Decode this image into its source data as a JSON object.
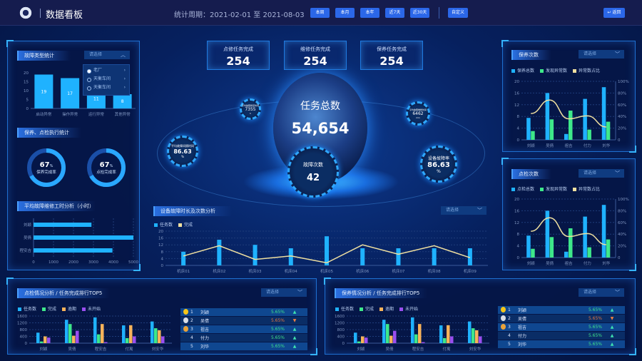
{
  "header": {
    "title": "数据看板",
    "period": "统计周期：2021-02-01 至 2021-08-03",
    "buttons": [
      "本周",
      "本月",
      "本年",
      "近7天",
      "近30天"
    ],
    "custom": "自定义",
    "back": "返回"
  },
  "colors": {
    "blue": "#1fb2ff",
    "green": "#3ee88a",
    "orange": "#f8b35a",
    "purple": "#9a4ef0",
    "line": "#f0e0a0",
    "accent": "#2b67e8"
  },
  "left": {
    "fault_type": {
      "title": "故障类型统计",
      "select": "请选择",
      "options": [
        "老厂",
        "天衡车间",
        "天衡车间"
      ]
    },
    "exec": {
      "title": "保养、点检执行统计",
      "gauges": [
        {
          "value": "67",
          "unit": "%",
          "label": "保养完成率",
          "pct": 67
        },
        {
          "value": "67",
          "unit": "%",
          "label": "点检完成率",
          "pct": 67
        }
      ]
    },
    "hours": {
      "title": "平均故障维修工时分析（小时）"
    }
  },
  "center": {
    "cards": [
      {
        "label": "点修任务完成",
        "value": "254"
      },
      {
        "label": "维修任务完成",
        "value": "254"
      },
      {
        "label": "保养任务完成",
        "value": "254"
      }
    ],
    "total": {
      "label": "任务总数",
      "value": "54,654"
    },
    "fault": {
      "label": "故障次数",
      "value": "42"
    },
    "rings": [
      {
        "label": "平均故障修复时间",
        "value": "7355",
        "unit": "h"
      },
      {
        "label": "平均故障间隔时间",
        "value": "86.63",
        "unit": "%"
      },
      {
        "label": "平均故障维修时间",
        "value": "6462",
        "unit": "min"
      },
      {
        "label": "设备故障率",
        "value": "86.63",
        "unit": "%"
      }
    ],
    "analysis": {
      "title": "设备故障时长及次数分析",
      "select": "请选择"
    }
  },
  "right": {
    "maint": {
      "title": "保养次数",
      "select": "请选择"
    },
    "insp": {
      "title": "点检次数",
      "select": "请选择"
    }
  },
  "bottom": [
    {
      "title": "点检情况分析 / 任务完成排行TOP5",
      "select": "请选择",
      "ranking": [
        {
          "rank": "1",
          "name": "刘颖",
          "pct": "5.65%",
          "trend": "up"
        },
        {
          "rank": "2",
          "name": "吴倩",
          "pct": "5.65%",
          "trend": "down"
        },
        {
          "rank": "3",
          "name": "祖吉",
          "pct": "5.65%",
          "trend": "up"
        },
        {
          "rank": "4",
          "name": "付力",
          "pct": "5.65%",
          "trend": "up"
        },
        {
          "rank": "5",
          "name": "刘华",
          "pct": "5.65%",
          "trend": "up"
        }
      ]
    },
    {
      "title": "保养情况分析 / 任务完成排行TOP5",
      "select": "请选择",
      "ranking": [
        {
          "rank": "1",
          "name": "刘颖",
          "pct": "5.65%",
          "trend": "up"
        },
        {
          "rank": "2",
          "name": "吴倩",
          "pct": "5.65%",
          "trend": "down"
        },
        {
          "rank": "3",
          "name": "祖吉",
          "pct": "5.65%",
          "trend": "up"
        },
        {
          "rank": "4",
          "name": "付力",
          "pct": "5.65%",
          "trend": "up"
        },
        {
          "rank": "5",
          "name": "刘华",
          "pct": "5.65%",
          "trend": "up"
        }
      ]
    }
  ],
  "chart_data": [
    {
      "id": "fault_type",
      "type": "bar",
      "categories": [
        "启动异常",
        "操作异常",
        "运行异常",
        "其他异常"
      ],
      "values": [
        19,
        17,
        11,
        8
      ],
      "ylim": [
        0,
        20
      ],
      "yticks": [
        0,
        5,
        10,
        15,
        20
      ],
      "data_labels": true
    },
    {
      "id": "hours",
      "type": "bar",
      "orientation": "horizontal",
      "categories": [
        "刘颖",
        "吴倩",
        "程安吉"
      ],
      "values": [
        2900,
        5000,
        3950
      ],
      "xlim": [
        0,
        5000
      ],
      "xticks": [
        0,
        1000,
        2000,
        3000,
        4000,
        5000
      ]
    },
    {
      "id": "maint",
      "type": "bar",
      "categories": [
        "刘颖",
        "吴倩",
        "祖吉",
        "付力",
        "刘华"
      ],
      "series": [
        {
          "name": "保养总数",
          "type": "bar",
          "values": [
            7.5,
            16,
            2,
            14,
            18
          ]
        },
        {
          "name": "发现异常数",
          "type": "bar",
          "values": [
            3,
            7,
            10,
            3.5,
            6.2
          ]
        },
        {
          "name": "异常数占比",
          "type": "line",
          "axis": "right",
          "values": [
            45,
            68,
            36,
            41,
            22
          ]
        }
      ],
      "ylim": [
        0,
        20
      ],
      "yticks": [
        0,
        4,
        8,
        12,
        16,
        20
      ],
      "y2lim": [
        0,
        100
      ],
      "y2ticks": [
        "0",
        "20%",
        "40%",
        "60%",
        "80%",
        "100%"
      ],
      "grid": true,
      "legend": "top-left"
    },
    {
      "id": "insp",
      "type": "bar",
      "categories": [
        "刘颖",
        "吴倩",
        "祖吉",
        "付力",
        "刘华"
      ],
      "series": [
        {
          "name": "点检总数",
          "type": "bar",
          "values": [
            7.5,
            16,
            2,
            14,
            18
          ]
        },
        {
          "name": "发现异常数",
          "type": "bar",
          "values": [
            3,
            7,
            10,
            3.5,
            6.2
          ]
        },
        {
          "name": "异常数占比",
          "type": "line",
          "axis": "right",
          "values": [
            45,
            68,
            36,
            41,
            22
          ]
        }
      ],
      "ylim": [
        0,
        20
      ],
      "yticks": [
        0,
        4,
        8,
        12,
        16,
        20
      ],
      "y2lim": [
        0,
        100
      ],
      "y2ticks": [
        "0",
        "20%",
        "40%",
        "60%",
        "80%",
        "100%"
      ],
      "grid": true,
      "legend": "top-left"
    },
    {
      "id": "analysis",
      "type": "bar",
      "categories": [
        "机床01",
        "机床02",
        "机床03",
        "机床04",
        "机床05",
        "机床06",
        "机床07",
        "机床08",
        "机床09"
      ],
      "series": [
        {
          "name": "任务数",
          "type": "bar",
          "values": [
            8,
            15,
            12,
            10,
            17,
            10,
            10,
            10,
            10
          ]
        },
        {
          "name": "完成",
          "type": "line",
          "values": [
            5.5,
            11.5,
            3.5,
            5.5,
            1.5,
            12,
            6.5,
            11.5,
            4.5
          ]
        }
      ],
      "ylim": [
        0,
        20
      ],
      "yticks": [
        0,
        4,
        8,
        12,
        16,
        20
      ],
      "grid": true,
      "legend": "top-left"
    },
    {
      "id": "b0",
      "type": "bar",
      "categories": [
        "刘颖",
        "吴倩",
        "程安吉",
        "付寓",
        "刘安华"
      ],
      "series": [
        {
          "name": "任务数",
          "values": [
            620,
            1380,
            1520,
            1050,
            1280
          ]
        },
        {
          "name": "完成",
          "values": [
            100,
            1130,
            520,
            300,
            880
          ]
        },
        {
          "name": "逾期",
          "values": [
            400,
            440,
            1130,
            1060,
            760
          ]
        },
        {
          "name": "未开始",
          "values": [
            330,
            730,
            60,
            400,
            400
          ]
        }
      ],
      "ylim": [
        0,
        1600
      ],
      "yticks": [
        0,
        400,
        800,
        1200,
        1600
      ],
      "grid": true,
      "legend": "top-left"
    },
    {
      "id": "b1",
      "type": "bar",
      "categories": [
        "刘颖",
        "吴倩",
        "程安吉",
        "付寓",
        "刘安华"
      ],
      "series": [
        {
          "name": "任务数",
          "values": [
            620,
            1380,
            1520,
            1050,
            1280
          ]
        },
        {
          "name": "完成",
          "values": [
            100,
            1130,
            520,
            300,
            880
          ]
        },
        {
          "name": "逾期",
          "values": [
            400,
            440,
            1130,
            1060,
            760
          ]
        },
        {
          "name": "未开始",
          "values": [
            330,
            730,
            60,
            400,
            400
          ]
        }
      ],
      "ylim": [
        0,
        1600
      ],
      "yticks": [
        0,
        400,
        800,
        1200,
        1600
      ],
      "grid": true,
      "legend": "top-left"
    }
  ]
}
